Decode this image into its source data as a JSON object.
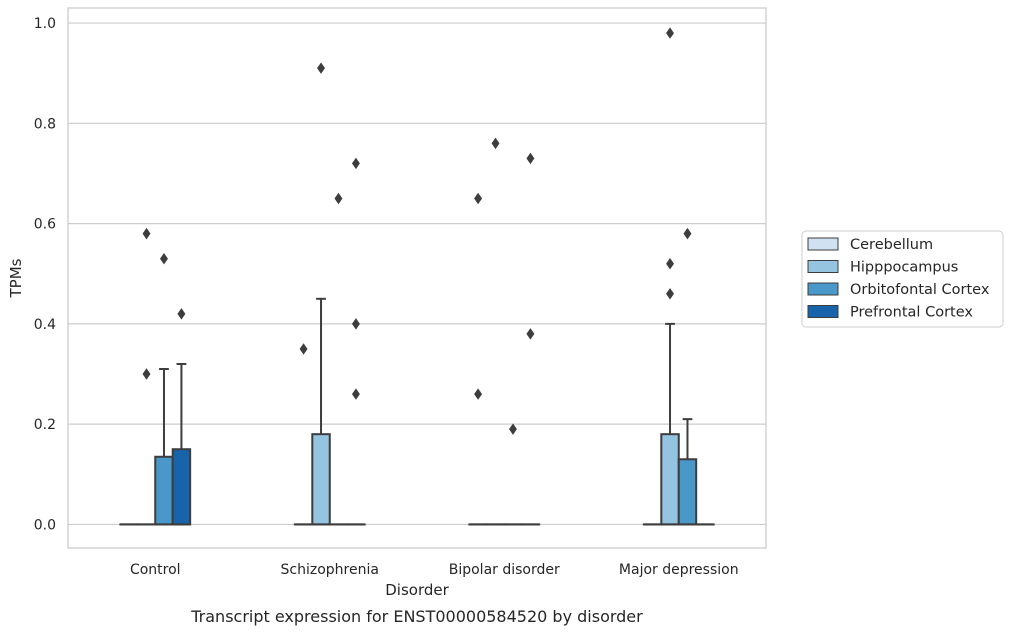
{
  "caption": "Transcript expression for ENST00000584520 by disorder",
  "chart_data": {
    "type": "box",
    "xlabel": "Disorder",
    "ylabel": "TPMs",
    "ylim": [
      -0.047,
      1.03
    ],
    "yticks": [
      0.0,
      0.2,
      0.4,
      0.6,
      0.8,
      1.0
    ],
    "ytick_labels": [
      "0.0",
      "0.2",
      "0.4",
      "0.6",
      "0.8",
      "1.0"
    ],
    "grid": true,
    "legend_position": "right",
    "categories": [
      "Control",
      "Schizophrenia",
      "Bipolar disorder",
      "Major depression"
    ],
    "series": [
      {
        "name": "Cerebellum",
        "color": "#d0e1f2",
        "boxes": [
          {
            "q1": 0,
            "median": 0,
            "q3": 0,
            "whisker_low": 0,
            "whisker_high": 0,
            "outliers": []
          },
          {
            "q1": 0,
            "median": 0,
            "q3": 0,
            "whisker_low": 0,
            "whisker_high": 0,
            "outliers": [
              0.35
            ]
          },
          {
            "q1": 0,
            "median": 0,
            "q3": 0,
            "whisker_low": 0,
            "whisker_high": 0,
            "outliers": [
              0.26,
              0.65
            ]
          },
          {
            "q1": 0,
            "median": 0,
            "q3": 0,
            "whisker_low": 0,
            "whisker_high": 0,
            "outliers": []
          }
        ]
      },
      {
        "name": "Hipppocampus",
        "color": "#94c4df",
        "boxes": [
          {
            "q1": 0,
            "median": 0,
            "q3": 0,
            "whisker_low": 0,
            "whisker_high": 0,
            "outliers": [
              0.3,
              0.58
            ]
          },
          {
            "q1": 0,
            "median": 0,
            "q3": 0.18,
            "whisker_low": 0,
            "whisker_high": 0.45,
            "outliers": [
              0.91
            ]
          },
          {
            "q1": 0,
            "median": 0,
            "q3": 0,
            "whisker_low": 0,
            "whisker_high": 0,
            "outliers": [
              0.76
            ]
          },
          {
            "q1": 0,
            "median": 0,
            "q3": 0.18,
            "whisker_low": 0,
            "whisker_high": 0.4,
            "outliers": [
              0.46,
              0.52,
              0.98
            ]
          }
        ]
      },
      {
        "name": "Orbitofontal Cortex",
        "color": "#4a98c9",
        "boxes": [
          {
            "q1": 0,
            "median": 0,
            "q3": 0.135,
            "whisker_low": 0,
            "whisker_high": 0.31,
            "outliers": [
              0.53
            ]
          },
          {
            "q1": 0,
            "median": 0,
            "q3": 0,
            "whisker_low": 0,
            "whisker_high": 0,
            "outliers": [
              0.65
            ]
          },
          {
            "q1": 0,
            "median": 0,
            "q3": 0,
            "whisker_low": 0,
            "whisker_high": 0,
            "outliers": [
              0.19
            ]
          },
          {
            "q1": 0,
            "median": 0,
            "q3": 0.13,
            "whisker_low": 0,
            "whisker_high": 0.21,
            "outliers": [
              0.58
            ]
          }
        ]
      },
      {
        "name": "Prefrontal Cortex",
        "color": "#1764ab",
        "boxes": [
          {
            "q1": 0,
            "median": 0,
            "q3": 0.15,
            "whisker_low": 0,
            "whisker_high": 0.32,
            "outliers": [
              0.42
            ]
          },
          {
            "q1": 0,
            "median": 0,
            "q3": 0,
            "whisker_low": 0,
            "whisker_high": 0,
            "outliers": [
              0.26,
              0.4,
              0.72
            ]
          },
          {
            "q1": 0,
            "median": 0,
            "q3": 0,
            "whisker_low": 0,
            "whisker_high": 0,
            "outliers": [
              0.38,
              0.73
            ]
          },
          {
            "q1": 0,
            "median": 0,
            "q3": 0,
            "whisker_low": 0,
            "whisker_high": 0,
            "outliers": []
          }
        ]
      }
    ]
  }
}
